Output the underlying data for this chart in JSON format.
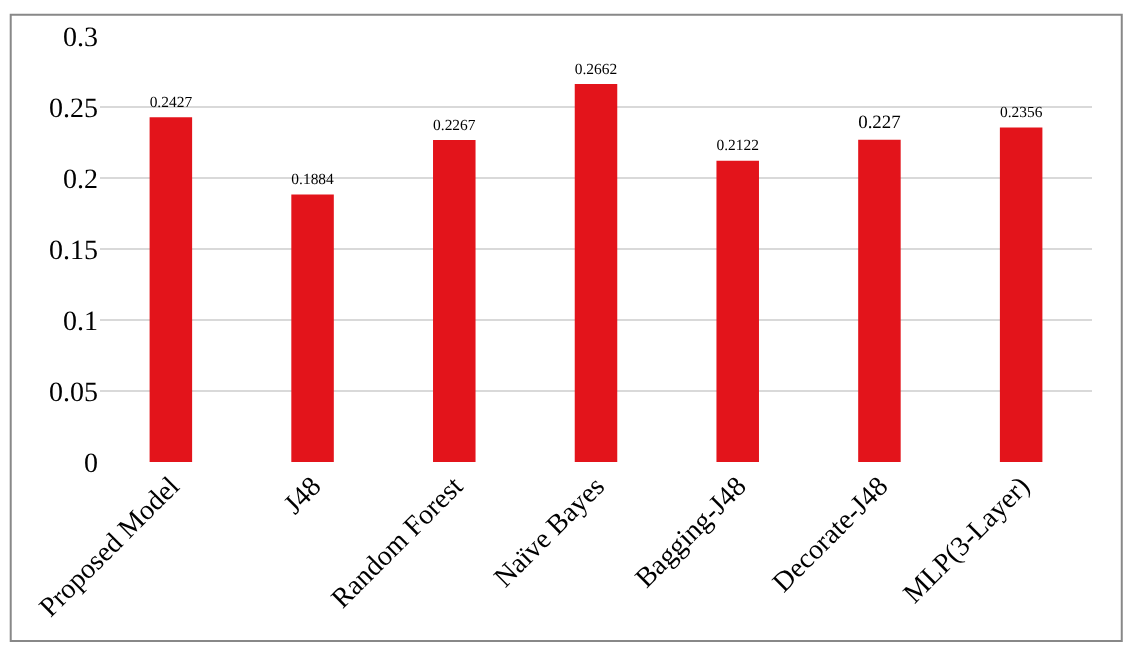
{
  "chart_data": {
    "type": "bar",
    "categories": [
      "Proposed Model",
      "J48",
      "Random Forest",
      "Naïve Bayes",
      "Bagging-J48",
      "Decorate-J48",
      "MLP(3-Layer)"
    ],
    "values": [
      0.2427,
      0.1884,
      0.2267,
      0.2662,
      0.2122,
      0.227,
      0.2356
    ],
    "value_labels": [
      "0.2427",
      "0.1884",
      "0.2267",
      "0.2662",
      "0.2122",
      "0.227",
      "0.2356"
    ],
    "color": "#e3141b",
    "ylim": [
      0,
      0.3
    ],
    "yticks": [
      0,
      0.05,
      0.1,
      0.15,
      0.2,
      0.25,
      0.3
    ],
    "grid": "y"
  }
}
